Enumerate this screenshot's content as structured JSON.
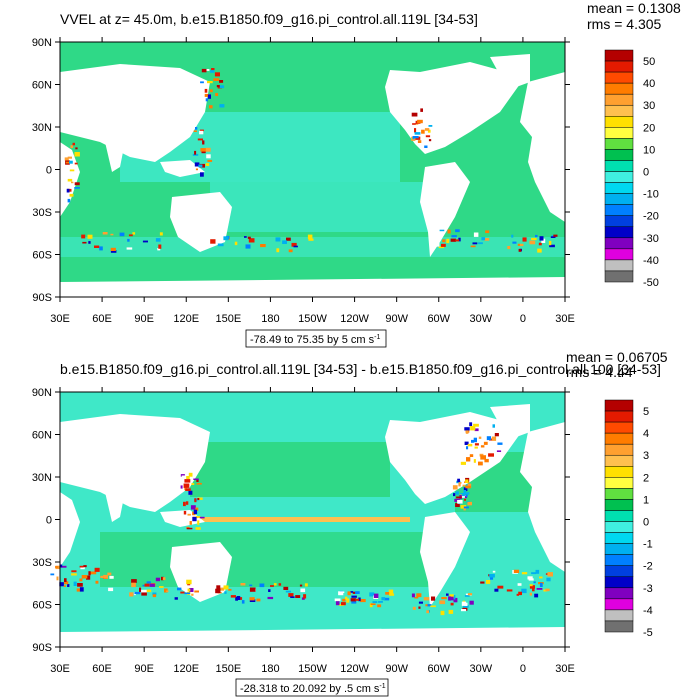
{
  "chart_data": [
    {
      "type": "heatmap",
      "title": "VVEL at z=  45.0m, b.e15.B1850.f09_g16.pi_control.all.119L [34-53]",
      "stats": {
        "mean": "mean = 0.1308",
        "rms": "rms = 4.305"
      },
      "range_label": {
        "text": "-78.49 to 75.35 by 5 cm s",
        "sup": "-1"
      },
      "ylabels": [
        "90N",
        "60N",
        "30N",
        "0",
        "30S",
        "60S",
        "90S"
      ],
      "xlabels": [
        "30E",
        "60E",
        "90E",
        "120E",
        "150E",
        "180",
        "150W",
        "120W",
        "90W",
        "60W",
        "30W",
        "0",
        "30E"
      ],
      "colorbar": {
        "labels": [
          "50",
          "40",
          "30",
          "20",
          "10",
          "0",
          "-10",
          "-20",
          "-30",
          "-40",
          "-50"
        ],
        "colors": [
          "#b40000",
          "#e31a00",
          "#ff4a00",
          "#ff7c00",
          "#ffa030",
          "#ffc050",
          "#ffe000",
          "#ffff40",
          "#60e040",
          "#00c050",
          "#00e0b0",
          "#40f0e0",
          "#00d8f0",
          "#00b0f0",
          "#0080ff",
          "#0040e0",
          "#0000c8",
          "#8000c0",
          "#e000e0",
          "#c0c0c0",
          "#707070"
        ]
      }
    },
    {
      "type": "heatmap",
      "title": "b.e15.B1850.f09_g16.pi_control.all.119L [34-53] - b.e15.B1850.f09_g16.pi_control.all.100 [34-53]",
      "stats": {
        "mean": "mean = 0.06705",
        "rms": "rms = 4.44"
      },
      "range_label": {
        "text": "-28.318 to 20.092 by .5 cm s",
        "sup": "-1"
      },
      "ylabels": [
        "90N",
        "60N",
        "30N",
        "0",
        "30S",
        "60S",
        "90S"
      ],
      "xlabels": [
        "30E",
        "60E",
        "90E",
        "120E",
        "150E",
        "180",
        "150W",
        "120W",
        "90W",
        "60W",
        "30W",
        "0",
        "30E"
      ],
      "colorbar": {
        "labels": [
          "5",
          "4",
          "3",
          "2",
          "1",
          "0",
          "-1",
          "-2",
          "-3",
          "-4",
          "-5"
        ],
        "colors": [
          "#b40000",
          "#e31a00",
          "#ff4a00",
          "#ff7c00",
          "#ffa030",
          "#ffc050",
          "#ffe000",
          "#ffff40",
          "#60e040",
          "#00c050",
          "#00e0b0",
          "#40f0e0",
          "#00d8f0",
          "#00b0f0",
          "#0080ff",
          "#0040e0",
          "#0000c8",
          "#8000c0",
          "#e000e0",
          "#c0c0c0",
          "#707070"
        ]
      }
    }
  ],
  "colors": {
    "ocean_background": "#2fd987",
    "land": "#ffffff",
    "ocean_light": "#3fe8c8"
  }
}
